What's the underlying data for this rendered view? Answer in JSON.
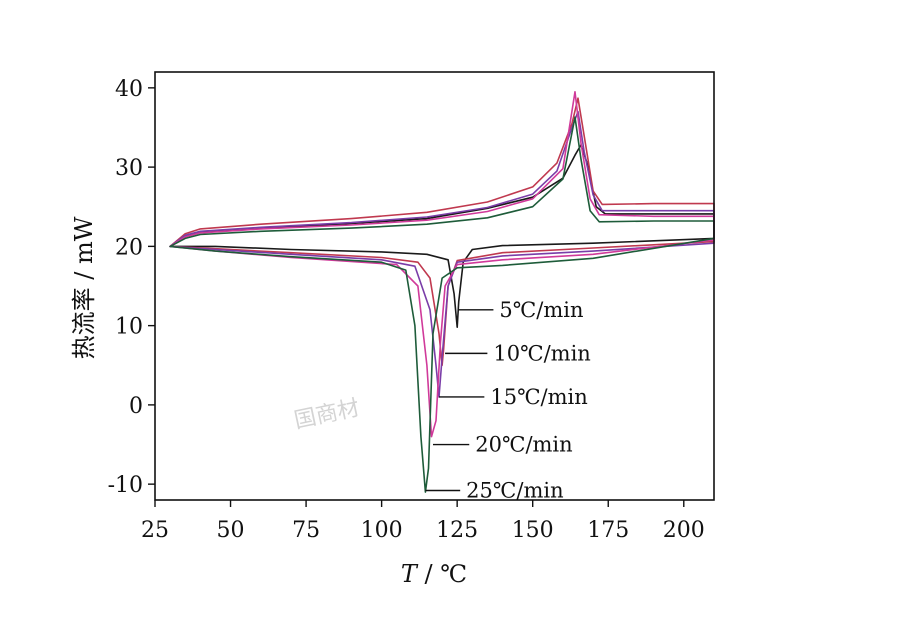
{
  "chart_data": {
    "type": "line",
    "xlabel_italic": "T",
    "xlabel_unit": " / ℃",
    "ylabel": "热流率 / mW",
    "xlim": [
      25,
      210
    ],
    "ylim": [
      -12,
      42
    ],
    "xticks": [
      25,
      50,
      75,
      100,
      125,
      150,
      175,
      200
    ],
    "yticks": [
      -10,
      0,
      10,
      20,
      30,
      40
    ],
    "watermark": "国商材",
    "series": [
      {
        "name": "5℃/min",
        "color": "#1a1a1a",
        "heating": [
          [
            30,
            20
          ],
          [
            35,
            21.3
          ],
          [
            40,
            21.8
          ],
          [
            60,
            22.3
          ],
          [
            90,
            22.9
          ],
          [
            115,
            23.5
          ],
          [
            135,
            24.8
          ],
          [
            150,
            26.2
          ],
          [
            160,
            28.6
          ],
          [
            164,
            31.5
          ],
          [
            166,
            32.8
          ],
          [
            168,
            30.5
          ],
          [
            171,
            25
          ],
          [
            174,
            24.1
          ],
          [
            190,
            24.1
          ],
          [
            210,
            24.1
          ]
        ],
        "cooling": [
          [
            210,
            21
          ],
          [
            170,
            20.4
          ],
          [
            140,
            20.1
          ],
          [
            130,
            19.6
          ],
          [
            127,
            18
          ],
          [
            125.5,
            13
          ],
          [
            125,
            9.8
          ],
          [
            124,
            14
          ],
          [
            122,
            18.3
          ],
          [
            115,
            19
          ],
          [
            100,
            19.3
          ],
          [
            70,
            19.6
          ],
          [
            45,
            20
          ],
          [
            30,
            20
          ]
        ]
      },
      {
        "name": "10℃/min",
        "color": "#c0394f",
        "heating": [
          [
            30,
            20
          ],
          [
            35,
            21.6
          ],
          [
            40,
            22.2
          ],
          [
            60,
            22.8
          ],
          [
            90,
            23.5
          ],
          [
            115,
            24.3
          ],
          [
            135,
            25.6
          ],
          [
            150,
            27.5
          ],
          [
            158,
            30.5
          ],
          [
            163,
            35.5
          ],
          [
            165,
            38.7
          ],
          [
            167,
            34
          ],
          [
            170,
            27
          ],
          [
            173,
            25.3
          ],
          [
            190,
            25.4
          ],
          [
            210,
            25.4
          ]
        ],
        "cooling": [
          [
            210,
            20.6
          ],
          [
            170,
            19.8
          ],
          [
            140,
            19.2
          ],
          [
            125,
            18.2
          ],
          [
            122,
            15
          ],
          [
            120.5,
            7
          ],
          [
            120,
            5
          ],
          [
            119,
            9
          ],
          [
            116,
            16
          ],
          [
            112,
            18
          ],
          [
            100,
            18.6
          ],
          [
            70,
            19.2
          ],
          [
            45,
            19.7
          ],
          [
            30,
            20
          ]
        ]
      },
      {
        "name": "15℃/min",
        "color": "#7a3da8",
        "heating": [
          [
            30,
            20
          ],
          [
            35,
            21.4
          ],
          [
            40,
            21.9
          ],
          [
            60,
            22.4
          ],
          [
            90,
            23
          ],
          [
            115,
            23.7
          ],
          [
            135,
            24.9
          ],
          [
            150,
            26.6
          ],
          [
            158,
            29.5
          ],
          [
            163,
            35
          ],
          [
            165,
            37
          ],
          [
            167,
            32
          ],
          [
            170,
            26.5
          ],
          [
            173,
            24.5
          ],
          [
            190,
            24.5
          ],
          [
            210,
            24.5
          ]
        ],
        "cooling": [
          [
            210,
            20.4
          ],
          [
            170,
            19.4
          ],
          [
            140,
            18.8
          ],
          [
            125,
            18
          ],
          [
            122,
            15
          ],
          [
            120,
            6
          ],
          [
            119,
            1
          ],
          [
            118,
            5
          ],
          [
            116,
            12
          ],
          [
            111,
            17.5
          ],
          [
            100,
            18.3
          ],
          [
            70,
            19
          ],
          [
            45,
            19.6
          ],
          [
            30,
            20
          ]
        ]
      },
      {
        "name": "20℃/min",
        "color": "#d03a9a",
        "heating": [
          [
            30,
            20
          ],
          [
            35,
            21.2
          ],
          [
            40,
            21.7
          ],
          [
            60,
            22.2
          ],
          [
            90,
            22.7
          ],
          [
            115,
            23.3
          ],
          [
            135,
            24.4
          ],
          [
            150,
            26
          ],
          [
            160,
            29.8
          ],
          [
            164,
            39.5
          ],
          [
            166,
            33
          ],
          [
            169,
            26
          ],
          [
            172,
            24
          ],
          [
            190,
            23.8
          ],
          [
            210,
            23.8
          ]
        ],
        "cooling": [
          [
            210,
            20.8
          ],
          [
            170,
            19
          ],
          [
            140,
            18.3
          ],
          [
            125,
            17.7
          ],
          [
            121,
            15
          ],
          [
            119.5,
            8
          ],
          [
            118,
            -2
          ],
          [
            116.5,
            -4
          ],
          [
            115,
            5
          ],
          [
            112,
            15
          ],
          [
            105,
            17.7
          ],
          [
            70,
            18.6
          ],
          [
            45,
            19.4
          ],
          [
            30,
            20
          ]
        ]
      },
      {
        "name": "25℃/min",
        "color": "#1e5c3a",
        "heating": [
          [
            30,
            20
          ],
          [
            35,
            21
          ],
          [
            40,
            21.5
          ],
          [
            60,
            21.9
          ],
          [
            90,
            22.3
          ],
          [
            115,
            22.8
          ],
          [
            135,
            23.6
          ],
          [
            150,
            25
          ],
          [
            160,
            28.5
          ],
          [
            164,
            36.3
          ],
          [
            166,
            31
          ],
          [
            169,
            24.5
          ],
          [
            172,
            23.1
          ],
          [
            190,
            23.2
          ],
          [
            210,
            23.2
          ]
        ],
        "cooling": [
          [
            210,
            21
          ],
          [
            170,
            18.5
          ],
          [
            140,
            17.6
          ],
          [
            125,
            17.3
          ],
          [
            120,
            16
          ],
          [
            117,
            9
          ],
          [
            115.5,
            -8
          ],
          [
            114.5,
            -11
          ],
          [
            113,
            -4
          ],
          [
            111,
            10
          ],
          [
            108,
            17
          ],
          [
            100,
            18
          ],
          [
            70,
            18.7
          ],
          [
            45,
            19.4
          ],
          [
            30,
            20
          ]
        ]
      }
    ],
    "annotations": [
      {
        "label": "5℃/min",
        "x": 125.5,
        "y": 12,
        "ex": 137,
        "ey": 12
      },
      {
        "label": "10℃/min",
        "x": 121,
        "y": 6.5,
        "ex": 135,
        "ey": 6.5
      },
      {
        "label": "15℃/min",
        "x": 119,
        "y": 1,
        "ex": 134,
        "ey": 1
      },
      {
        "label": "20℃/min",
        "x": 117,
        "y": -5,
        "ex": 129,
        "ey": -5
      },
      {
        "label": "25℃/min",
        "x": 114.5,
        "y": -10.8,
        "ex": 126,
        "ey": -10.8
      }
    ]
  }
}
